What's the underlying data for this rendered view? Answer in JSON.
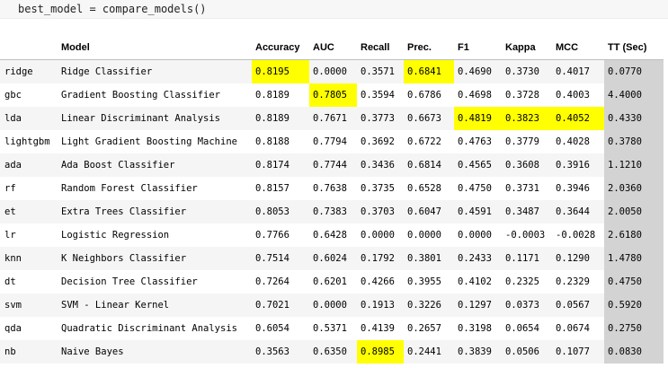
{
  "code_cell": {
    "code": "best_model = compare_models()"
  },
  "table": {
    "columns": [
      "",
      "Model",
      "Accuracy",
      "AUC",
      "Recall",
      "Prec.",
      "F1",
      "Kappa",
      "MCC",
      "TT (Sec)"
    ],
    "rows": [
      {
        "index": "ridge",
        "cells": [
          "Ridge Classifier",
          "0.8195",
          "0.0000",
          "0.3571",
          "0.6841",
          "0.4690",
          "0.3730",
          "0.4017",
          "0.0770"
        ],
        "highlight": [
          1,
          4
        ]
      },
      {
        "index": "gbc",
        "cells": [
          "Gradient Boosting Classifier",
          "0.8189",
          "0.7805",
          "0.3594",
          "0.6786",
          "0.4698",
          "0.3728",
          "0.4003",
          "4.4000"
        ],
        "highlight": [
          2
        ]
      },
      {
        "index": "lda",
        "cells": [
          "Linear Discriminant Analysis",
          "0.8189",
          "0.7671",
          "0.3773",
          "0.6673",
          "0.4819",
          "0.3823",
          "0.4052",
          "0.4330"
        ],
        "highlight": [
          5,
          6,
          7
        ]
      },
      {
        "index": "lightgbm",
        "cells": [
          "Light Gradient Boosting Machine",
          "0.8188",
          "0.7794",
          "0.3692",
          "0.6722",
          "0.4763",
          "0.3779",
          "0.4028",
          "0.3780"
        ],
        "highlight": []
      },
      {
        "index": "ada",
        "cells": [
          "Ada Boost Classifier",
          "0.8174",
          "0.7744",
          "0.3436",
          "0.6814",
          "0.4565",
          "0.3608",
          "0.3916",
          "1.1210"
        ],
        "highlight": []
      },
      {
        "index": "rf",
        "cells": [
          "Random Forest Classifier",
          "0.8157",
          "0.7638",
          "0.3735",
          "0.6528",
          "0.4750",
          "0.3731",
          "0.3946",
          "2.0360"
        ],
        "highlight": []
      },
      {
        "index": "et",
        "cells": [
          "Extra Trees Classifier",
          "0.8053",
          "0.7383",
          "0.3703",
          "0.6047",
          "0.4591",
          "0.3487",
          "0.3644",
          "2.0050"
        ],
        "highlight": []
      },
      {
        "index": "lr",
        "cells": [
          "Logistic Regression",
          "0.7766",
          "0.6428",
          "0.0000",
          "0.0000",
          "0.0000",
          "-0.0003",
          "-0.0028",
          "2.6180"
        ],
        "highlight": []
      },
      {
        "index": "knn",
        "cells": [
          "K Neighbors Classifier",
          "0.7514",
          "0.6024",
          "0.1792",
          "0.3801",
          "0.2433",
          "0.1171",
          "0.1290",
          "1.4780"
        ],
        "highlight": []
      },
      {
        "index": "dt",
        "cells": [
          "Decision Tree Classifier",
          "0.7264",
          "0.6201",
          "0.4266",
          "0.3955",
          "0.4102",
          "0.2325",
          "0.2329",
          "0.4750"
        ],
        "highlight": []
      },
      {
        "index": "svm",
        "cells": [
          "SVM - Linear Kernel",
          "0.7021",
          "0.0000",
          "0.1913",
          "0.3226",
          "0.1297",
          "0.0373",
          "0.0567",
          "0.5920"
        ],
        "highlight": []
      },
      {
        "index": "qda",
        "cells": [
          "Quadratic Discriminant Analysis",
          "0.6054",
          "0.5371",
          "0.4139",
          "0.2657",
          "0.3198",
          "0.0654",
          "0.0674",
          "0.2750"
        ],
        "highlight": []
      },
      {
        "index": "nb",
        "cells": [
          "Naive Bayes",
          "0.3563",
          "0.6350",
          "0.8985",
          "0.2441",
          "0.3839",
          "0.0506",
          "0.1077",
          "0.0830"
        ],
        "highlight": [
          3
        ]
      }
    ]
  },
  "colors": {
    "highlight": "#ffff00",
    "tt_column": "#d3d3d3",
    "code_background": "#f7f7f7"
  }
}
